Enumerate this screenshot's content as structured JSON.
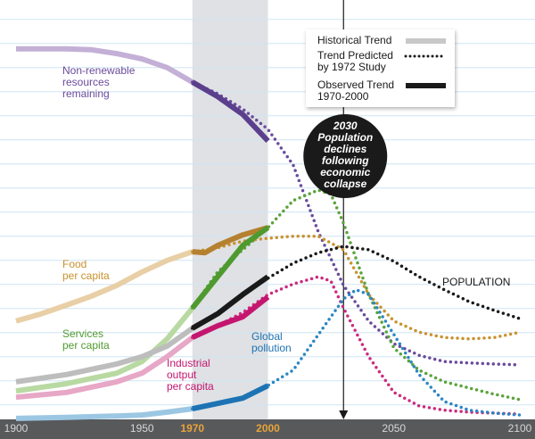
{
  "chart_data": {
    "type": "line",
    "xlim": [
      1900,
      2100
    ],
    "xticks": [
      1900,
      1950,
      1970,
      2000,
      2050,
      2100
    ],
    "xtick_highlight_color": "#e8a33a",
    "ylim": [
      2,
      88
    ],
    "yticks": [
      5,
      10,
      15,
      20,
      25,
      30,
      35,
      40,
      45,
      50,
      55,
      60,
      65,
      70,
      75,
      80,
      85
    ],
    "grid": true,
    "shaded_range": [
      1970,
      2000
    ],
    "event": {
      "x": 2030,
      "label": [
        "2030",
        "Population",
        "declines",
        "following",
        "economic",
        "collapse"
      ]
    },
    "legend": [
      {
        "label": [
          "Historical Trend"
        ],
        "color": "#c8c8c8",
        "style": "historical"
      },
      {
        "label": [
          "Trend Predicted",
          "by 1972 Study"
        ],
        "color": "#1a1a1a",
        "style": "predicted"
      },
      {
        "label": [
          "Observed Trend",
          "1970-2000"
        ],
        "color": "#1a1a1a",
        "style": "observed"
      }
    ],
    "variables": [
      {
        "name": [
          "Non-renewable",
          "resources",
          "remaining"
        ],
        "label_color": "#6a4a9c",
        "historical": {
          "color": "#c4b0d6",
          "x": [
            1900,
            1910,
            1920,
            1930,
            1940,
            1950,
            1960,
            1970
          ],
          "values": [
            78.9,
            78.9,
            78.9,
            78.7,
            77.9,
            76.8,
            75.0,
            72.0
          ]
        },
        "observed": {
          "color": "#5b3f8c",
          "x": [
            1970,
            1980,
            1990,
            2000
          ],
          "values": [
            72.0,
            69.0,
            65.3,
            59.8
          ]
        },
        "predicted": {
          "color": "#6a4a9c",
          "x": [
            1970,
            1980,
            1990,
            2000,
            2010,
            2020,
            2030,
            2040,
            2050,
            2060,
            2070,
            2080,
            2090,
            2100
          ],
          "values": [
            72.0,
            69.6,
            66.4,
            62.2,
            54.8,
            40.9,
            29.8,
            22.4,
            17.7,
            15.3,
            14.0,
            13.7,
            13.5,
            13.3
          ]
        }
      },
      {
        "name": [
          "Food",
          "per capita"
        ],
        "label_color": "#c8922e",
        "historical": {
          "color": "#e8cfa6",
          "x": [
            1900,
            1910,
            1920,
            1930,
            1940,
            1950,
            1960,
            1970
          ],
          "values": [
            22.4,
            23.9,
            25.7,
            27.6,
            29.8,
            32.6,
            35.0,
            36.8
          ]
        },
        "observed": {
          "color": "#b5812f",
          "x": [
            1970,
            1975,
            1980,
            1990,
            2000
          ],
          "values": [
            36.8,
            36.6,
            38.1,
            40.3,
            41.8
          ]
        },
        "predicted": {
          "color": "#c8922e",
          "x": [
            1970,
            1980,
            1990,
            2000,
            2010,
            2020,
            2030,
            2040,
            2050,
            2060,
            2070,
            2080,
            2090,
            2100
          ],
          "values": [
            36.8,
            37.6,
            39.0,
            39.6,
            40.0,
            40.0,
            37.2,
            27.9,
            22.4,
            20.1,
            19.0,
            18.7,
            19.0,
            20.1
          ]
        }
      },
      {
        "name": [
          "Services",
          "per capita"
        ],
        "label_color": "#4f9a2f",
        "historical": {
          "color": "#b9d9a3",
          "x": [
            1900,
            1920,
            1940,
            1950,
            1960,
            1970
          ],
          "values": [
            7.9,
            9.4,
            11.6,
            14.0,
            18.7,
            25.1
          ]
        },
        "observed": {
          "color": "#4f9a2f",
          "x": [
            1970,
            1980,
            1990,
            2000
          ],
          "values": [
            25.1,
            31.6,
            38.1,
            41.8
          ]
        },
        "predicted": {
          "color": "#5aa33a",
          "x": [
            1970,
            1980,
            1990,
            2000,
            2010,
            2020,
            2025,
            2030,
            2040,
            2050,
            2060,
            2070,
            2080,
            2090,
            2100
          ],
          "values": [
            25.1,
            32.6,
            37.2,
            41.8,
            47.4,
            49.6,
            48.7,
            42.7,
            27.9,
            16.8,
            12.2,
            9.8,
            8.5,
            7.2,
            6.1
          ]
        }
      },
      {
        "name": [
          "POPULATION"
        ],
        "label_color": "#1a1a1a",
        "historical": {
          "color": "#bdbdbd",
          "x": [
            1900,
            1920,
            1940,
            1950,
            1960,
            1970
          ],
          "values": [
            9.8,
            11.3,
            13.5,
            15.0,
            17.2,
            20.9
          ]
        },
        "observed": {
          "color": "#1a1a1a",
          "x": [
            1970,
            1980,
            1990,
            2000
          ],
          "values": [
            20.9,
            23.9,
            27.9,
            31.6
          ]
        },
        "predicted": {
          "color": "#1a1a1a",
          "x": [
            1970,
            1980,
            1990,
            2000,
            2010,
            2020,
            2030,
            2040,
            2050,
            2060,
            2070,
            2080,
            2090,
            2100
          ],
          "values": [
            20.9,
            24.2,
            27.9,
            31.3,
            34.4,
            36.6,
            37.9,
            37.2,
            34.8,
            31.6,
            28.9,
            26.4,
            24.6,
            22.9
          ]
        }
      },
      {
        "name": [
          "Industrial",
          "output",
          "per capita"
        ],
        "label_color": "#c4166f",
        "historical": {
          "color": "#e7a7c6",
          "x": [
            1900,
            1920,
            1940,
            1950,
            1960,
            1970
          ],
          "values": [
            6.6,
            7.6,
            9.8,
            11.6,
            15.0,
            19.0
          ]
        },
        "observed": {
          "color": "#c4166f",
          "x": [
            1970,
            1980,
            1990,
            2000
          ],
          "values": [
            19.0,
            21.4,
            23.3,
            27.4
          ]
        },
        "predicted": {
          "color": "#cc2a7d",
          "x": [
            1970,
            1980,
            1990,
            2000,
            2010,
            2020,
            2025,
            2030,
            2040,
            2050,
            2060,
            2070,
            2080,
            2090,
            2100
          ],
          "values": [
            19.0,
            21.4,
            24.2,
            27.9,
            30.1,
            31.6,
            30.7,
            25.1,
            15.0,
            7.6,
            4.8,
            3.9,
            3.5,
            3.3,
            3.1
          ]
        }
      },
      {
        "name": [
          "Global",
          "pollution"
        ],
        "label_color": "#1d73b3",
        "historical": {
          "color": "#9cc7e3",
          "x": [
            1900,
            1920,
            1940,
            1950,
            1960,
            1970
          ],
          "values": [
            2.2,
            2.4,
            2.7,
            2.9,
            3.5,
            4.2
          ]
        },
        "observed": {
          "color": "#1d73b3",
          "x": [
            1970,
            1980,
            1990,
            2000
          ],
          "values": [
            4.2,
            5.3,
            6.4,
            9.0
          ]
        },
        "predicted": {
          "color": "#2a86c4",
          "x": [
            1970,
            1980,
            1990,
            2000,
            2010,
            2020,
            2030,
            2035,
            2040,
            2050,
            2060,
            2070,
            2080,
            2090,
            2100
          ],
          "values": [
            4.2,
            5.3,
            6.6,
            9.0,
            12.2,
            19.6,
            27.0,
            28.9,
            27.9,
            19.6,
            11.3,
            5.7,
            3.9,
            3.3,
            2.9
          ]
        }
      }
    ]
  }
}
